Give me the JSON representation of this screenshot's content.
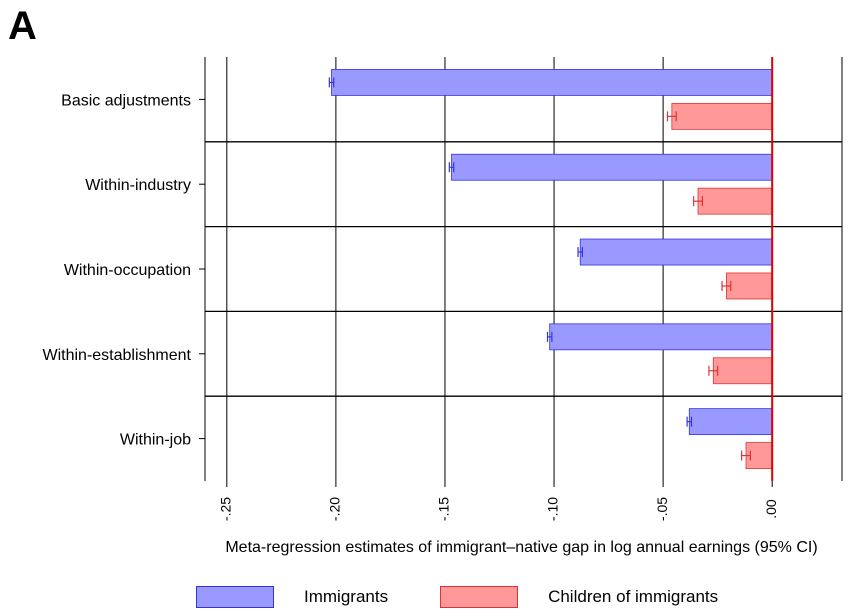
{
  "panel_letter": "A",
  "colors": {
    "immigrants_fill": "#9999ff",
    "immigrants_stroke": "#3333dd",
    "children_fill": "#ff9999",
    "children_stroke": "#dd3333",
    "zero_line": "#dd0000"
  },
  "legend": {
    "immigrants_label": "Immigrants",
    "children_label": "Children of immigrants"
  },
  "chart_data": {
    "type": "bar",
    "orientation": "horizontal",
    "categories": [
      "Basic adjustments",
      "Within-industry",
      "Within-occupation",
      "Within-establishment",
      "Within-job"
    ],
    "series": [
      {
        "name": "Immigrants",
        "values": [
          -0.202,
          -0.147,
          -0.088,
          -0.102,
          -0.038
        ],
        "ci": [
          [
            -0.203,
            -0.201
          ],
          [
            -0.148,
            -0.146
          ],
          [
            -0.089,
            -0.087
          ],
          [
            -0.103,
            -0.101
          ],
          [
            -0.039,
            -0.037
          ]
        ]
      },
      {
        "name": "Children of immigrants",
        "values": [
          -0.046,
          -0.034,
          -0.021,
          -0.027,
          -0.012
        ],
        "ci": [
          [
            -0.048,
            -0.044
          ],
          [
            -0.036,
            -0.032
          ],
          [
            -0.023,
            -0.019
          ],
          [
            -0.029,
            -0.025
          ],
          [
            -0.014,
            -0.01
          ]
        ]
      }
    ],
    "xlabel": "Meta-regression estimates of immigrant–native gap in log annual earnings (95% CI)",
    "ylabel": "",
    "xlim": [
      -0.26,
      0.032
    ],
    "xticks": [
      -0.25,
      -0.2,
      -0.15,
      -0.1,
      -0.05,
      0.0
    ],
    "xtick_labels": [
      "-.25",
      "-.20",
      "-.15",
      "-.10",
      "-.05",
      ".00"
    ],
    "grid": true,
    "legend_position": "bottom"
  }
}
